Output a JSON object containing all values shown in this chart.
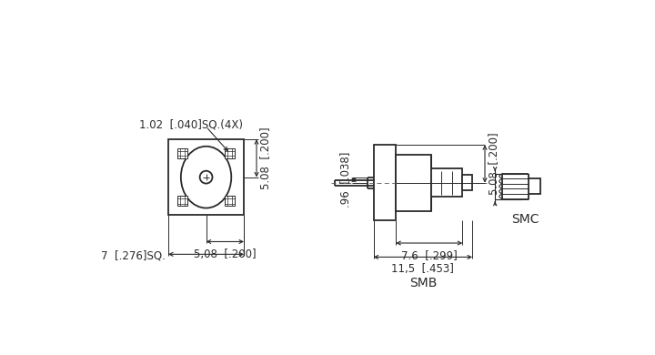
{
  "line_color": "#2a2a2a",
  "lw": 1.3,
  "tlw": 0.7,
  "annotations": {
    "dim_1_02": "1.02  [.040]SQ.(4X)",
    "dim_5_08_vert": "5.08  [.200]",
    "dim_96": ".96  [.038]",
    "dim_5_08_horiz": "5,08  [.200]",
    "dim_7": "7  [.276]SQ.",
    "dim_7_6": "7.6  [.299]",
    "dim_11_5": "11,5  [.453]",
    "label_smb": "SMB",
    "label_smc": "SMC"
  }
}
